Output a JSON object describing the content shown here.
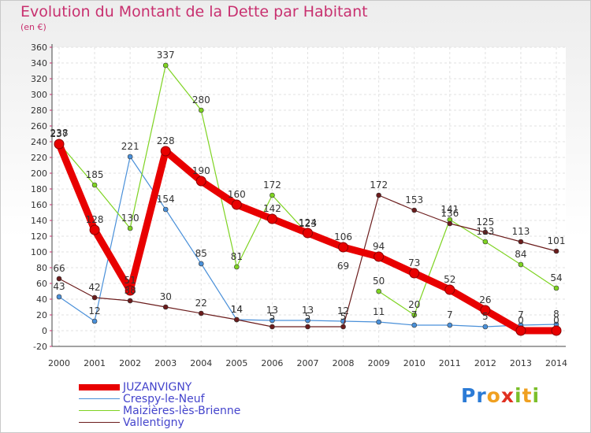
{
  "header": {
    "title": "Evolution du Montant de la Dette par Habitant",
    "subtitle": "(en €)"
  },
  "logo": {
    "text": "Proxiti"
  },
  "chart_data": {
    "type": "line",
    "title": "Evolution du Montant de la Dette par Habitant",
    "subtitle": "(en €)",
    "xlabel": "",
    "ylabel": "",
    "ylim": [
      -20,
      360
    ],
    "y_ticks": [
      -20,
      0,
      20,
      40,
      60,
      80,
      100,
      120,
      140,
      160,
      180,
      200,
      220,
      240,
      260,
      280,
      300,
      320,
      340,
      360
    ],
    "grid": true,
    "legend_position": "bottom-left",
    "categories": [
      "2000",
      "2001",
      "2002",
      "2003",
      "2004",
      "2005",
      "2006",
      "2007",
      "2008",
      "2009",
      "2010",
      "2011",
      "2012",
      "2013",
      "2014"
    ],
    "series": [
      {
        "name": "JUZANVIGNY",
        "color": "#e80000",
        "values": [
          237,
          128,
          51,
          228,
          190,
          160,
          142,
          124,
          106,
          94,
          73,
          52,
          26,
          0,
          0
        ]
      },
      {
        "name": "Crespy-le-Neuf",
        "color": "#4a90d9",
        "values": [
          43,
          12,
          221,
          154,
          85,
          14,
          13,
          13,
          12,
          11,
          7,
          7,
          5,
          7,
          8
        ]
      },
      {
        "name": "Maizières-lès-Brienne",
        "color": "#7ed321",
        "values": [
          238,
          185,
          130,
          337,
          280,
          81,
          172,
          123,
          null,
          50,
          20,
          141,
          113,
          84,
          54
        ]
      },
      {
        "name": "Vallentigny",
        "color": "#6b1c1c",
        "values": [
          66,
          42,
          38,
          30,
          22,
          14,
          5,
          5,
          5,
          172,
          153,
          136,
          125,
          113,
          101
        ]
      }
    ],
    "data_labels": [
      {
        "series": 0,
        "labels": [
          "237",
          "128",
          "51",
          "228",
          "190",
          "160",
          "142",
          "124",
          "106",
          "94",
          "73",
          "52",
          "26",
          "0",
          "0"
        ]
      },
      {
        "series": 1,
        "labels": [
          "43",
          "12",
          "221",
          "154",
          "85",
          "14",
          "13",
          "13",
          "12",
          "11",
          "7",
          "7",
          "5",
          "7",
          "8"
        ]
      },
      {
        "series": 2,
        "labels": [
          "238",
          "185",
          "130",
          "337",
          "280",
          "81",
          "172",
          "123",
          "69",
          "50",
          "20",
          "141",
          "113",
          "84",
          "54"
        ]
      },
      {
        "series": 3,
        "labels": [
          "66",
          "42",
          "38",
          "30",
          "22",
          "14",
          "5",
          "5",
          "5",
          "172",
          "153",
          "136",
          "125",
          "113",
          "101"
        ]
      }
    ]
  }
}
